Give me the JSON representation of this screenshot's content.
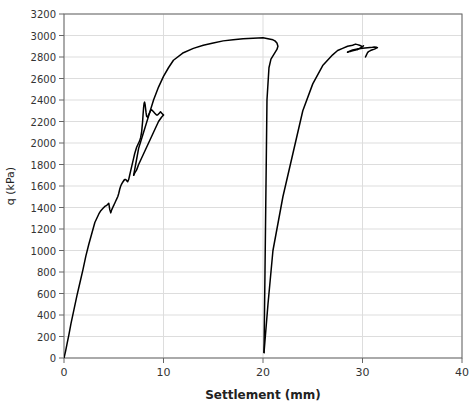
{
  "chart_data": {
    "type": "line",
    "xlabel": "Settlement (mm)",
    "ylabel": "q (kPa)",
    "xlim": [
      0,
      40
    ],
    "ylim": [
      0,
      3200
    ],
    "xticks": [
      0,
      10,
      20,
      30,
      40
    ],
    "yticks": [
      0,
      200,
      400,
      600,
      800,
      1000,
      1200,
      1400,
      1600,
      1800,
      2000,
      2200,
      2400,
      2600,
      2800,
      3000,
      3200
    ],
    "color": "#000000",
    "grid": true,
    "series": [
      {
        "x": [
          0,
          0.15,
          0.3,
          0.5,
          0.7,
          1.0,
          1.3,
          1.6,
          1.9,
          2.2,
          2.5,
          2.8,
          3.1,
          3.3,
          3.5,
          3.7,
          3.9,
          4.1,
          4.3,
          4.4,
          4.5,
          4.6,
          4.7,
          4.8,
          4.85,
          4.9,
          4.95,
          5.0,
          5.05,
          5.1,
          5.2,
          5.3,
          5.4,
          5.5,
          5.6,
          5.7,
          5.8,
          5.9,
          6.0
        ],
        "values": [
          0,
          60,
          130,
          220,
          320,
          450,
          580,
          700,
          820,
          950,
          1060,
          1160,
          1260,
          1300,
          1340,
          1370,
          1390,
          1410,
          1420,
          1430,
          1440,
          1380,
          1350,
          1380,
          1390,
          1400,
          1410,
          1420,
          1430,
          1440,
          1460,
          1480,
          1500,
          1530,
          1570,
          1600,
          1620,
          1635,
          1650
        ]
      },
      {
        "x": [
          6.0,
          6.1,
          6.2,
          6.3,
          6.4,
          6.5,
          6.6,
          6.7,
          6.8,
          6.9,
          7.0,
          7.1,
          7.2,
          7.3,
          7.4,
          7.5,
          7.6,
          7.7,
          7.8,
          7.85,
          7.9,
          7.95,
          8.0,
          8.05,
          8.1,
          8.15,
          8.2,
          8.25,
          8.3,
          8.4,
          8.5,
          8.6,
          8.7,
          8.8,
          8.9,
          9.0,
          9.1,
          9.2,
          9.3,
          9.4,
          9.5,
          9.6,
          9.7,
          9.8,
          9.9,
          10.0
        ],
        "values": [
          1650,
          1660,
          1660,
          1650,
          1640,
          1660,
          1700,
          1740,
          1780,
          1820,
          1860,
          1900,
          1930,
          1960,
          1980,
          2000,
          2020,
          2050,
          2100,
          2150,
          2200,
          2270,
          2330,
          2370,
          2380,
          2360,
          2320,
          2280,
          2250,
          2240,
          2260,
          2280,
          2300,
          2310,
          2300,
          2290,
          2280,
          2270,
          2260,
          2260,
          2270,
          2280,
          2290,
          2280,
          2270,
          2260
        ]
      },
      {
        "x": [
          10.0,
          9.8,
          9.5,
          9.0,
          8.5,
          8.0,
          7.5,
          7.3,
          7.1,
          7.0
        ],
        "values": [
          2260,
          2240,
          2200,
          2100,
          2000,
          1900,
          1800,
          1750,
          1720,
          1700
        ]
      },
      {
        "x": [
          7.0,
          7.1,
          7.2,
          7.5,
          8.0,
          8.5,
          9.0,
          9.5,
          10.0,
          10.5,
          11.0,
          12.0,
          13.0,
          14.0,
          15.0,
          16.0,
          17.0,
          18.0,
          19.0,
          20.0,
          20.5,
          21.0,
          21.2,
          21.4,
          21.5,
          21.4,
          21.2,
          21.0,
          20.8,
          20.6,
          20.4,
          20.2,
          20.1
        ],
        "values": [
          1700,
          1750,
          1800,
          1950,
          2100,
          2250,
          2400,
          2520,
          2620,
          2700,
          2770,
          2840,
          2880,
          2910,
          2930,
          2950,
          2960,
          2970,
          2975,
          2980,
          2970,
          2960,
          2950,
          2930,
          2900,
          2870,
          2840,
          2810,
          2780,
          2700,
          2400,
          800,
          50
        ]
      },
      {
        "x": [
          20.1,
          20.5,
          21.0,
          22.0,
          23.0,
          24.0,
          25.0,
          26.0,
          27.0,
          27.5,
          28.0,
          28.5,
          29.0,
          29.3,
          29.5,
          29.7,
          29.9,
          30.0,
          30.05,
          30.1,
          30.05,
          30.0,
          29.9,
          29.8,
          29.7,
          29.6,
          29.5
        ],
        "values": [
          50,
          500,
          1000,
          1500,
          1900,
          2300,
          2550,
          2720,
          2820,
          2860,
          2880,
          2900,
          2910,
          2920,
          2915,
          2910,
          2900,
          2895,
          2900,
          2905,
          2900,
          2895,
          2890,
          2885,
          2880,
          2875,
          2870
        ]
      },
      {
        "x": [
          29.5,
          29.3,
          29.1,
          29.0,
          28.9,
          28.8,
          28.7,
          28.6,
          28.5
        ],
        "values": [
          2870,
          2865,
          2860,
          2858,
          2855,
          2852,
          2850,
          2848,
          2845
        ]
      },
      {
        "x": [
          28.5,
          28.7,
          29.0,
          29.5,
          30.0,
          30.5,
          31.0,
          31.2,
          31.4,
          31.5,
          31.4,
          31.3,
          31.2,
          31.0,
          30.8,
          30.6,
          30.5,
          30.4,
          30.3
        ],
        "values": [
          2845,
          2855,
          2865,
          2875,
          2882,
          2887,
          2890,
          2892,
          2890,
          2887,
          2883,
          2878,
          2873,
          2867,
          2860,
          2850,
          2840,
          2820,
          2800
        ]
      }
    ]
  }
}
